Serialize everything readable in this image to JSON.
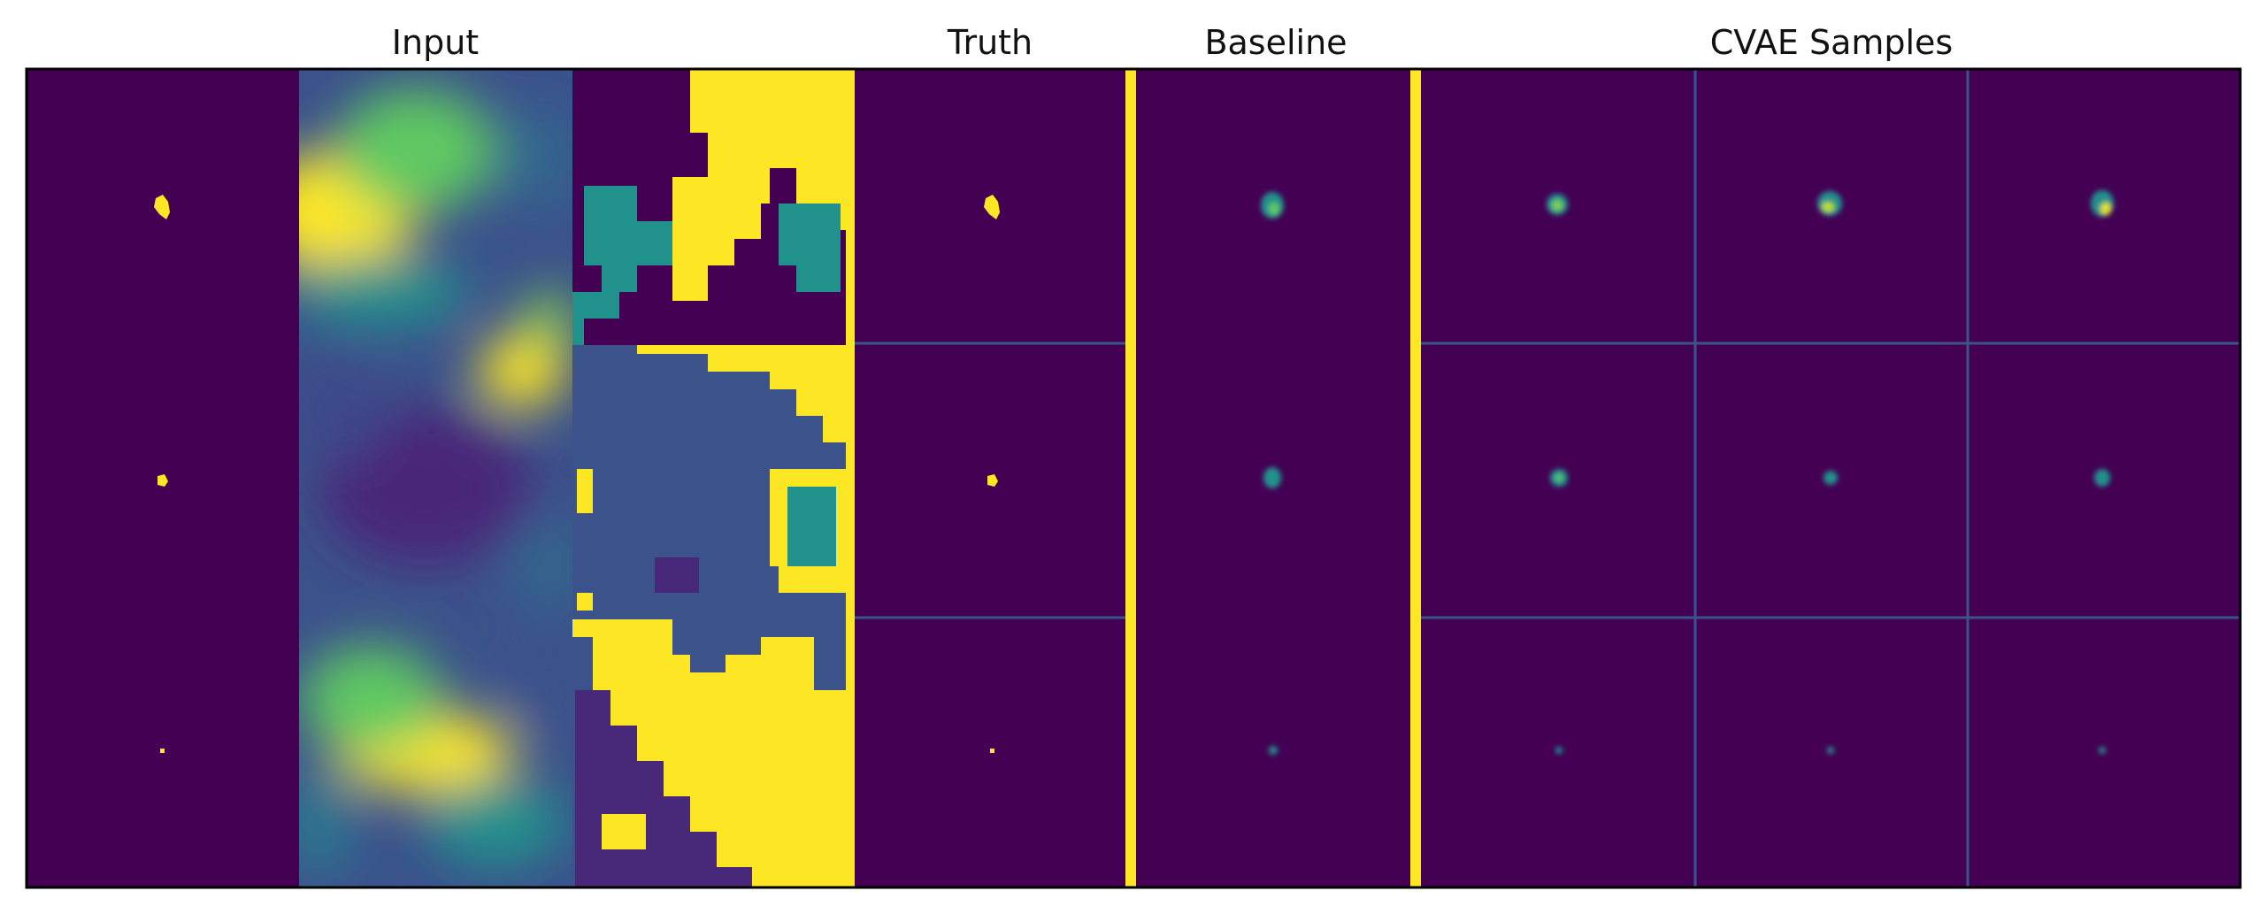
{
  "column_titles": {
    "input": "Input",
    "truth": "Truth",
    "baseline": "Baseline",
    "cvae": "CVAE Samples"
  },
  "colormap": {
    "background": "#440154",
    "low": "#3b528b",
    "mid": "#21918c",
    "high_mid": "#5ec962",
    "high": "#fde725",
    "separator": "#fde725",
    "frame": "#000000"
  },
  "rows": [
    {
      "blob": "large"
    },
    {
      "blob": "medium"
    },
    {
      "blob": "small"
    }
  ]
}
